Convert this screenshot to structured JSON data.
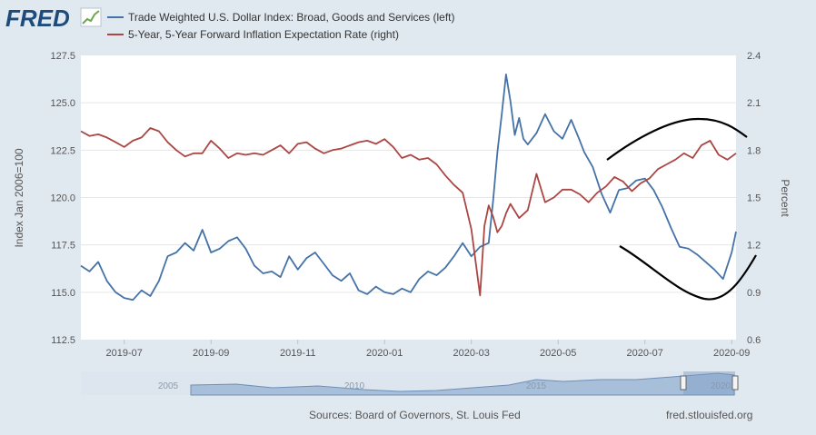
{
  "logo": {
    "text": "FRED"
  },
  "legend": [
    {
      "label": "Trade Weighted U.S. Dollar Index: Broad, Goods and Services (left)",
      "color": "#4572a7"
    },
    {
      "label": "5-Year, 5-Year Forward Inflation Expectation Rate (right)",
      "color": "#aa4643"
    }
  ],
  "footer": {
    "source": "Sources: Board of Governors, St. Louis Fed",
    "site": "fred.stlouisfed.org"
  },
  "navigator": {
    "labels": [
      "2005",
      "2010",
      "2015",
      "2020"
    ]
  },
  "colors": {
    "background": "#e1e9f0",
    "plot": "#ffffff",
    "dollar": "#4572a7",
    "inflation": "#aa4643",
    "annotation": "#000000"
  },
  "chart_data": {
    "type": "line",
    "x_range": [
      0,
      15.1
    ],
    "x_unit": "months since 2019-06-01",
    "x_ticks": [
      {
        "pos": 1,
        "label": "2019-07"
      },
      {
        "pos": 3,
        "label": "2019-09"
      },
      {
        "pos": 5,
        "label": "2019-11"
      },
      {
        "pos": 7,
        "label": "2020-01"
      },
      {
        "pos": 9,
        "label": "2020-03"
      },
      {
        "pos": 11,
        "label": "2020-05"
      },
      {
        "pos": 13,
        "label": "2020-07"
      },
      {
        "pos": 15,
        "label": "2020-09"
      }
    ],
    "y_left": {
      "label": "Index Jan 2006=100",
      "range": [
        112.5,
        127.5
      ],
      "ticks": [
        "112.5",
        "115.0",
        "117.5",
        "120.0",
        "122.5",
        "125.0",
        "127.5"
      ]
    },
    "y_right": {
      "label": "Percent",
      "range": [
        0.6,
        2.4
      ],
      "ticks": [
        "0.6",
        "0.9",
        "1.2",
        "1.5",
        "1.8",
        "2.1",
        "2.4"
      ]
    },
    "series": [
      {
        "name": "Trade Weighted U.S. Dollar Index: Broad, Goods and Services",
        "axis": "left",
        "x": [
          0,
          0.2,
          0.4,
          0.6,
          0.8,
          1.0,
          1.2,
          1.4,
          1.6,
          1.8,
          2.0,
          2.2,
          2.4,
          2.6,
          2.8,
          3.0,
          3.2,
          3.4,
          3.6,
          3.8,
          4.0,
          4.2,
          4.4,
          4.6,
          4.8,
          5.0,
          5.2,
          5.4,
          5.6,
          5.8,
          6.0,
          6.2,
          6.4,
          6.6,
          6.8,
          7.0,
          7.2,
          7.4,
          7.6,
          7.8,
          8.0,
          8.2,
          8.4,
          8.6,
          8.8,
          9.0,
          9.2,
          9.4,
          9.5,
          9.6,
          9.7,
          9.8,
          9.9,
          10.0,
          10.1,
          10.2,
          10.3,
          10.5,
          10.7,
          10.9,
          11.1,
          11.3,
          11.5,
          11.6,
          11.8,
          12.0,
          12.2,
          12.4,
          12.6,
          12.8,
          13.0,
          13.2,
          13.4,
          13.6,
          13.8,
          14.0,
          14.2,
          14.4,
          14.6,
          14.8,
          15.0,
          15.1
        ],
        "values": [
          116.4,
          116.1,
          116.6,
          115.6,
          115.0,
          114.7,
          114.6,
          115.1,
          114.8,
          115.6,
          116.9,
          117.1,
          117.6,
          117.2,
          118.3,
          117.1,
          117.3,
          117.7,
          117.9,
          117.3,
          116.4,
          116.0,
          116.1,
          115.8,
          116.9,
          116.2,
          116.8,
          117.1,
          116.5,
          115.9,
          115.6,
          116.0,
          115.1,
          114.9,
          115.3,
          115.0,
          114.9,
          115.2,
          115.0,
          115.7,
          116.1,
          115.9,
          116.3,
          116.9,
          117.6,
          116.9,
          117.4,
          117.6,
          119.8,
          122.4,
          124.4,
          126.5,
          125.1,
          123.3,
          124.2,
          123.1,
          122.8,
          123.4,
          124.4,
          123.5,
          123.1,
          124.1,
          123.0,
          122.4,
          121.6,
          120.2,
          119.2,
          120.4,
          120.5,
          120.9,
          121.0,
          120.4,
          119.5,
          118.4,
          117.4,
          117.3,
          117.0,
          116.6,
          116.2,
          115.7,
          117.1,
          118.2
        ]
      },
      {
        "name": "5-Year, 5-Year Forward Inflation Expectation Rate",
        "axis": "right",
        "x": [
          0,
          0.2,
          0.4,
          0.6,
          0.8,
          1.0,
          1.2,
          1.4,
          1.6,
          1.8,
          2.0,
          2.2,
          2.4,
          2.6,
          2.8,
          3.0,
          3.2,
          3.4,
          3.6,
          3.8,
          4.0,
          4.2,
          4.4,
          4.6,
          4.8,
          5.0,
          5.2,
          5.4,
          5.6,
          5.8,
          6.0,
          6.2,
          6.4,
          6.6,
          6.8,
          7.0,
          7.2,
          7.4,
          7.6,
          7.8,
          8.0,
          8.2,
          8.4,
          8.6,
          8.8,
          9.0,
          9.2,
          9.3,
          9.4,
          9.5,
          9.6,
          9.7,
          9.8,
          9.9,
          10.1,
          10.3,
          10.5,
          10.7,
          10.9,
          11.1,
          11.3,
          11.5,
          11.7,
          11.9,
          12.1,
          12.3,
          12.5,
          12.7,
          12.9,
          13.1,
          13.3,
          13.5,
          13.7,
          13.9,
          14.1,
          14.3,
          14.5,
          14.7,
          14.9,
          15.1
        ],
        "values": [
          1.92,
          1.89,
          1.9,
          1.88,
          1.85,
          1.82,
          1.86,
          1.88,
          1.94,
          1.92,
          1.85,
          1.8,
          1.76,
          1.78,
          1.78,
          1.86,
          1.81,
          1.75,
          1.78,
          1.77,
          1.78,
          1.77,
          1.8,
          1.83,
          1.78,
          1.84,
          1.85,
          1.81,
          1.78,
          1.8,
          1.81,
          1.83,
          1.85,
          1.86,
          1.84,
          1.87,
          1.82,
          1.75,
          1.77,
          1.74,
          1.75,
          1.71,
          1.64,
          1.58,
          1.53,
          1.3,
          0.88,
          1.32,
          1.45,
          1.38,
          1.28,
          1.32,
          1.4,
          1.46,
          1.37,
          1.42,
          1.65,
          1.47,
          1.5,
          1.55,
          1.55,
          1.52,
          1.47,
          1.53,
          1.57,
          1.63,
          1.6,
          1.54,
          1.59,
          1.62,
          1.68,
          1.71,
          1.74,
          1.78,
          1.75,
          1.83,
          1.86,
          1.77,
          1.74,
          1.78
        ]
      }
    ],
    "annotations": [
      {
        "type": "hand-drawn arc",
        "shape": "arch above right end of inflation series"
      },
      {
        "type": "hand-drawn arc",
        "shape": "cup below right end of dollar series"
      }
    ]
  }
}
